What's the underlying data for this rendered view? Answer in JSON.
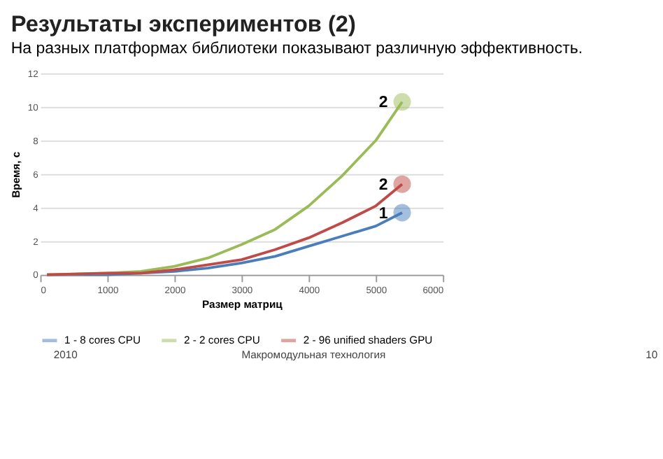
{
  "chart_data": {
    "type": "line",
    "title": "Результаты экспериментов (2)",
    "subtitle": "На разных платформах библиотеки показывают различную эффективность.",
    "xlabel": "Размер матриц",
    "ylabel": "Время, с",
    "x": [
      100,
      1000,
      1500,
      2000,
      2500,
      3000,
      3500,
      4000,
      4500,
      5000,
      5393
    ],
    "series": [
      {
        "name": "1 - 8 cores CPU",
        "color": "#4a7ebb",
        "values": [
          0,
          0,
          0.1,
          0.2,
          0.4,
          0.7,
          1.1,
          1.7,
          2.3,
          2.9,
          3.7
        ]
      },
      {
        "name": "2 - 2 cores CPU",
        "color": "#9bbb59",
        "values": [
          0,
          0.1,
          0.2,
          0.5,
          1.0,
          1.8,
          2.7,
          4.1,
          5.9,
          8.0,
          10.3
        ]
      },
      {
        "name": "2 - 96 unified shaders GPU",
        "color": "#be4b48",
        "values": [
          0,
          0.1,
          0.1,
          0.3,
          0.6,
          0.9,
          1.5,
          2.2,
          3.1,
          4.1,
          5.4
        ]
      }
    ],
    "xlim": [
      0,
      6000
    ],
    "xticks": [
      0,
      1000,
      2000,
      3000,
      4000,
      5000,
      6000
    ],
    "ylim": [
      0,
      12
    ],
    "yticks": [
      0,
      2,
      4,
      6,
      8,
      10,
      12
    ],
    "grid": "y",
    "legend": "bottom",
    "marker": "none",
    "line_style": "solid",
    "annotations": [
      "1",
      "2",
      "2",
      "2010",
      "Макромодульная технология",
      "10"
    ]
  }
}
